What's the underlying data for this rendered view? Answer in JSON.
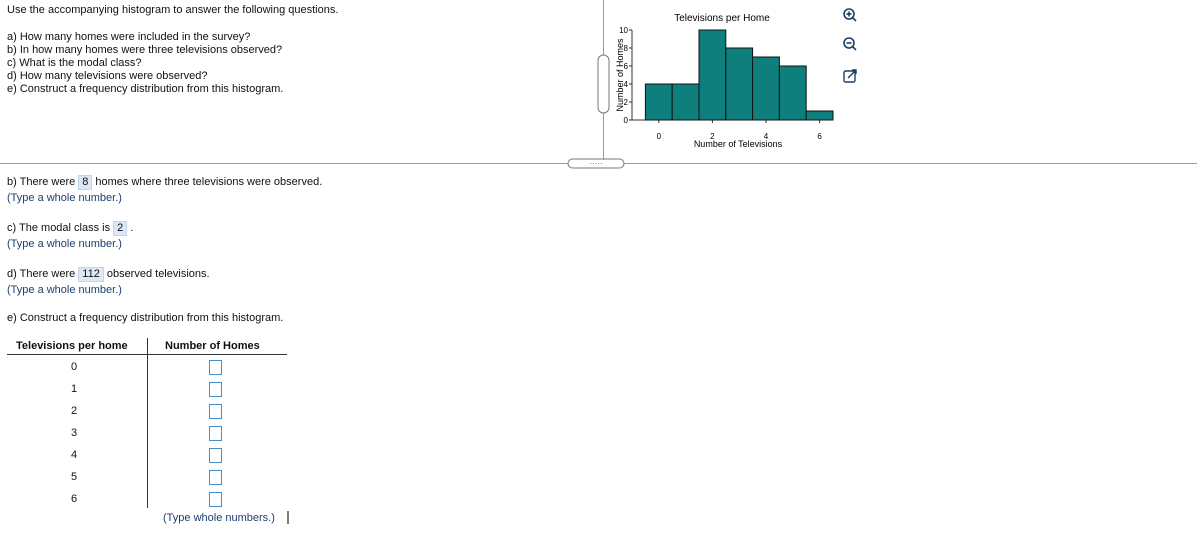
{
  "instructions": "Use the accompanying histogram to answer the following questions.",
  "questions": [
    "a) How many homes were included in the survey?",
    "b) In how many homes were three televisions observed?",
    "c) What is the modal class?",
    "d) How many televisions were observed?",
    "e) Construct a frequency distribution from this histogram."
  ],
  "chart_data": {
    "type": "histogram",
    "title": "Televisions per Home",
    "x_label": "Number of Televisions",
    "y_label": "Number of Homes",
    "bins": [
      -0.5,
      0.5,
      1.5,
      2.5,
      3.5,
      4.5,
      5.5,
      6.5
    ],
    "values": [
      4,
      4,
      10,
      8,
      7,
      6,
      1
    ],
    "color": "#0f7f7d",
    "xlim": [
      -1,
      6.5
    ],
    "xticks": [
      0,
      2,
      4,
      6
    ],
    "ylim": [
      0,
      10
    ],
    "yticks": [
      0,
      2,
      4,
      6,
      8,
      10
    ]
  },
  "answers": [
    {
      "prefix": "b) There were",
      "value": 8,
      "suffix": "homes where three televisions were observed.",
      "hint": "(Type a whole number.)"
    },
    {
      "prefix": "c) The modal class is",
      "value": 2,
      "suffix": ".",
      "hint": "(Type a whole number.)"
    },
    {
      "prefix": "d) There were",
      "value": 112,
      "suffix": "observed televisions.",
      "hint": "(Type a whole number.)"
    }
  ],
  "part_e": "e) Construct a frequency distribution from this histogram.",
  "table": {
    "headers": [
      "Televisions per home",
      "Number of Homes"
    ],
    "rows": [
      0,
      1,
      2,
      3,
      4,
      5,
      6
    ],
    "hint": "(Type whole numbers.)"
  }
}
